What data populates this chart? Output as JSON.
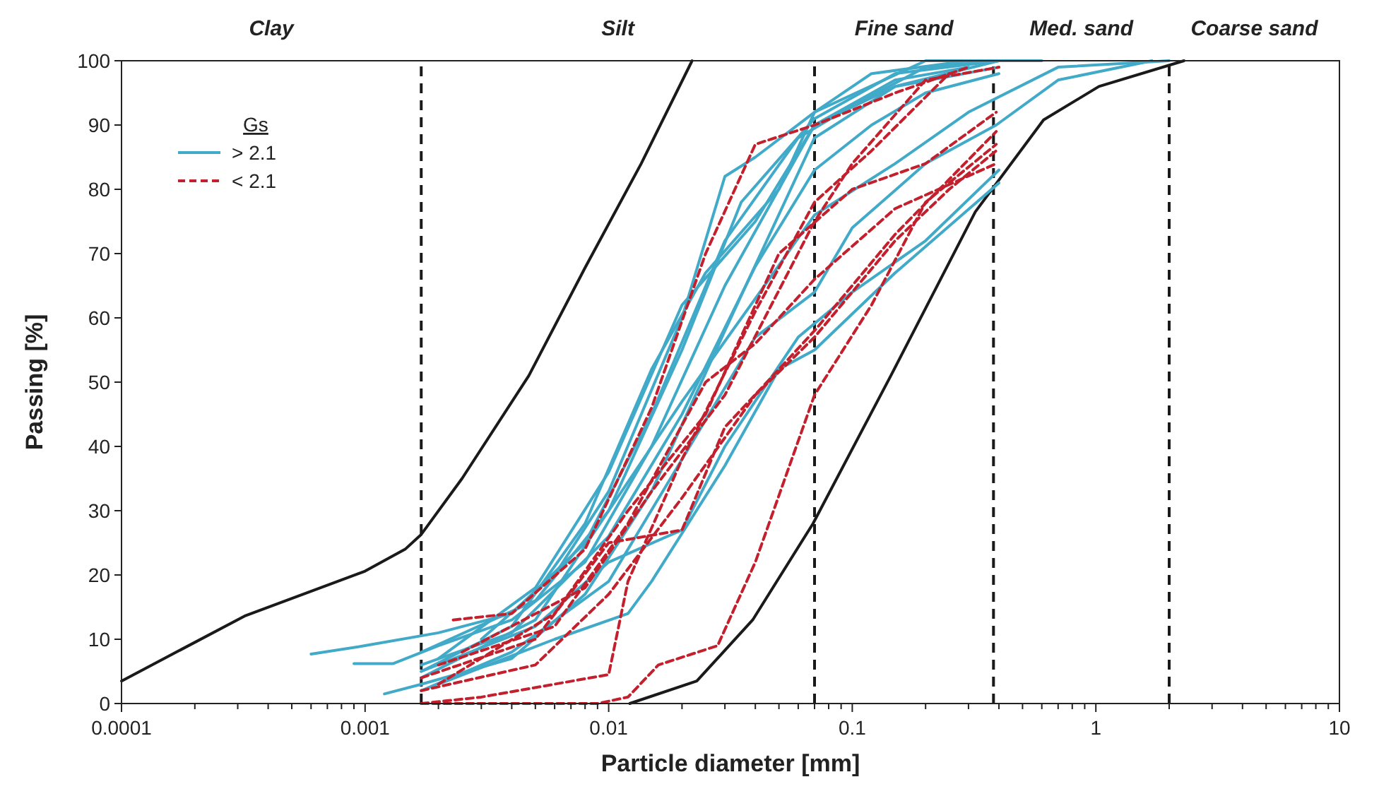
{
  "chart_data": {
    "type": "line",
    "xlabel": "Particle diameter [mm]",
    "ylabel": "Passing [%]",
    "log": "x",
    "xlim": [
      0.0001,
      10
    ],
    "ylim": [
      0,
      100
    ],
    "xticks": [
      0.0001,
      {
        "value": 0.0002,
        "label": null
      },
      {
        "value": 0.0003,
        "label": null
      },
      {
        "value": 0.0004,
        "label": null
      },
      {
        "value": 0.0005,
        "label": null
      },
      {
        "value": 0.0006,
        "label": null
      },
      {
        "value": 0.0007,
        "label": null
      },
      {
        "value": 0.0008,
        "label": null
      },
      {
        "value": 0.0009,
        "label": null
      },
      0.001,
      {
        "value": 0.002,
        "label": null
      },
      {
        "value": 0.003,
        "label": null
      },
      {
        "value": 0.004,
        "label": null
      },
      {
        "value": 0.005,
        "label": null
      },
      {
        "value": 0.006,
        "label": null
      },
      {
        "value": 0.007,
        "label": null
      },
      {
        "value": 0.008,
        "label": null
      },
      {
        "value": 0.009,
        "label": null
      },
      0.01,
      {
        "value": 0.02,
        "label": null
      },
      {
        "value": 0.03,
        "label": null
      },
      {
        "value": 0.04,
        "label": null
      },
      {
        "value": 0.05,
        "label": null
      },
      {
        "value": 0.06,
        "label": null
      },
      {
        "value": 0.07,
        "label": null
      },
      {
        "value": 0.08,
        "label": null
      },
      {
        "value": 0.09,
        "label": null
      },
      0.1,
      {
        "value": 0.2,
        "label": null
      },
      {
        "value": 0.3,
        "label": null
      },
      {
        "value": 0.4,
        "label": null
      },
      {
        "value": 0.5,
        "label": null
      },
      {
        "value": 0.6,
        "label": null
      },
      {
        "value": 0.7,
        "label": null
      },
      {
        "value": 0.8,
        "label": null
      },
      {
        "value": 0.9,
        "label": null
      },
      1,
      {
        "value": 2,
        "label": null
      },
      {
        "value": 3,
        "label": null
      },
      {
        "value": 4,
        "label": null
      },
      {
        "value": 5,
        "label": null
      },
      {
        "value": 6,
        "label": null
      },
      {
        "value": 7,
        "label": null
      },
      {
        "value": 8,
        "label": null
      },
      {
        "value": 9,
        "label": null
      },
      10
    ],
    "yticks": [
      0,
      10,
      20,
      30,
      40,
      50,
      60,
      70,
      80,
      90,
      100
    ],
    "grid": false,
    "marker": "none",
    "legend": "top left",
    "legend_title": "Gs",
    "ref_lines": [
      {
        "axis": "x",
        "value": 0.0017,
        "color": "#1a1a1a",
        "line_style": "dashed"
      },
      {
        "axis": "x",
        "value": 0.07,
        "color": "#1a1a1a",
        "line_style": "dashed"
      },
      {
        "axis": "x",
        "value": 0.38,
        "color": "#1a1a1a",
        "line_style": "dashed"
      },
      {
        "axis": "x",
        "value": 2,
        "color": "#1a1a1a",
        "line_style": "dashed"
      }
    ],
    "annotations": [
      "Clay",
      "Silt",
      "Fine sand",
      "Med. sand",
      "Coarse sand"
    ],
    "series": [
      {
        "color": "#1a1a1a",
        "line_style": "solid",
        "x": [
          0.0001,
          0.00032,
          0.001,
          0.00146,
          0.0017,
          0.0025,
          0.0047,
          0.008,
          0.0136,
          0.022
        ],
        "values": [
          3.5,
          13.6,
          20.6,
          24,
          26.3,
          35,
          51,
          67.8,
          84,
          100
        ]
      },
      {
        "color": "#1a1a1a",
        "line_style": "solid",
        "x": [
          0.0122,
          0.023,
          0.039,
          0.069,
          0.144,
          0.32,
          0.61,
          1.03,
          2.3
        ],
        "values": [
          0,
          3.5,
          13,
          28,
          51,
          76.5,
          90.8,
          96,
          100
        ]
      },
      {
        "name": "> 2.1",
        "color": "#41aac8",
        "line_style": "solid",
        "x": [
          0.0006,
          0.001,
          0.002,
          0.004,
          0.008,
          0.015,
          0.03,
          0.06,
          0.1,
          0.2,
          0.4
        ],
        "values": [
          7.7,
          9,
          11,
          14,
          25,
          45,
          72,
          88,
          93,
          99,
          100
        ]
      },
      {
        "color": "#41aac8",
        "line_style": "solid",
        "x": [
          0.0009,
          0.0013,
          0.002,
          0.004,
          0.008,
          0.015,
          0.03,
          0.07,
          0.15,
          0.3
        ],
        "values": [
          6.2,
          6.2,
          9,
          13,
          22,
          40,
          65,
          90,
          97,
          99
        ]
      },
      {
        "color": "#41aac8",
        "line_style": "solid",
        "x": [
          0.0012,
          0.0017,
          0.004,
          0.008,
          0.015,
          0.03,
          0.07,
          0.15,
          0.4
        ],
        "values": [
          1.5,
          3,
          7,
          17,
          33,
          58,
          88,
          96,
          100
        ]
      },
      {
        "color": "#41aac8",
        "line_style": "solid",
        "x": [
          0.0017,
          0.004,
          0.008,
          0.015,
          0.025,
          0.05,
          0.07,
          0.2,
          0.6
        ],
        "values": [
          5,
          12,
          28,
          52,
          67,
          80,
          92,
          100,
          100
        ]
      },
      {
        "color": "#41aac8",
        "line_style": "solid",
        "x": [
          0.0017,
          0.005,
          0.01,
          0.02,
          0.035,
          0.07,
          0.15,
          0.4
        ],
        "values": [
          4,
          13,
          30,
          55,
          78,
          91,
          98,
          100
        ]
      },
      {
        "color": "#41aac8",
        "line_style": "solid",
        "x": [
          0.0017,
          0.004,
          0.01,
          0.02,
          0.04,
          0.07,
          0.12,
          0.2,
          0.4
        ],
        "values": [
          6,
          11,
          26,
          45,
          68,
          83,
          90,
          95,
          98
        ]
      },
      {
        "color": "#41aac8",
        "line_style": "solid",
        "x": [
          0.0017,
          0.005,
          0.01,
          0.02,
          0.04,
          0.07,
          0.15,
          0.3,
          0.7,
          2
        ],
        "values": [
          8,
          16,
          30,
          47,
          63,
          76,
          84,
          92,
          99,
          100
        ]
      },
      {
        "color": "#41aac8",
        "line_style": "solid",
        "x": [
          0.0017,
          0.004,
          0.01,
          0.02,
          0.04,
          0.07,
          0.1,
          0.2,
          0.39,
          0.7,
          1.7
        ],
        "values": [
          2,
          8,
          19,
          38,
          57,
          64,
          74,
          84,
          90,
          97,
          100
        ]
      },
      {
        "color": "#41aac8",
        "line_style": "solid",
        "x": [
          0.002,
          0.006,
          0.012,
          0.015,
          0.03,
          0.05,
          0.07,
          0.15,
          0.4
        ],
        "values": [
          3,
          10,
          14,
          19,
          37,
          52,
          55,
          67,
          81
        ]
      },
      {
        "color": "#41aac8",
        "line_style": "solid",
        "x": [
          0.0017,
          0.005,
          0.01,
          0.02,
          0.03,
          0.06,
          0.1,
          0.2,
          0.4
        ],
        "values": [
          5,
          12,
          22,
          27,
          40,
          57,
          64,
          72,
          83
        ]
      },
      {
        "color": "#41aac8",
        "line_style": "solid",
        "x": [
          0.003,
          0.006,
          0.01,
          0.02,
          0.03,
          0.04,
          0.07,
          0.12,
          0.3
        ],
        "values": [
          10,
          20,
          33,
          60,
          82,
          85,
          92,
          98,
          100
        ]
      },
      {
        "color": "#41aac8",
        "line_style": "solid",
        "x": [
          0.002,
          0.005,
          0.01,
          0.02,
          0.04,
          0.07,
          0.15,
          0.4
        ],
        "values": [
          7,
          18,
          36,
          62,
          75,
          90,
          96,
          99
        ]
      },
      {
        "name": "< 2.1",
        "color": "#c3202e",
        "line_style": "dashed",
        "x": [
          0.0023,
          0.004,
          0.008,
          0.015,
          0.025,
          0.04,
          0.07,
          0.15,
          0.3
        ],
        "values": [
          13,
          14,
          24,
          46,
          70,
          87,
          90,
          95,
          99
        ]
      },
      {
        "color": "#c3202e",
        "line_style": "dashed",
        "x": [
          0.0017,
          0.003,
          0.01,
          0.012,
          0.02,
          0.04,
          0.07,
          0.12,
          0.25
        ],
        "values": [
          0,
          1,
          4.5,
          19,
          38,
          61,
          78,
          86,
          98
        ]
      },
      {
        "color": "#c3202e",
        "line_style": "dashed",
        "x": [
          0.0017,
          0.004,
          0.009,
          0.012,
          0.016,
          0.028,
          0.04,
          0.07,
          0.12,
          0.2,
          0.39
        ],
        "values": [
          0,
          0,
          0,
          1,
          6,
          9,
          22,
          48,
          62,
          78,
          87
        ]
      },
      {
        "color": "#c3202e",
        "line_style": "dashed",
        "x": [
          0.0017,
          0.005,
          0.01,
          0.02,
          0.04,
          0.07,
          0.15,
          0.25,
          0.39
        ],
        "values": [
          2,
          6,
          17,
          32,
          48,
          57,
          72,
          80,
          86
        ]
      },
      {
        "color": "#c3202e",
        "line_style": "dashed",
        "x": [
          0.0017,
          0.005,
          0.01,
          0.02,
          0.03,
          0.05,
          0.07,
          0.15,
          0.39
        ],
        "values": [
          4,
          10,
          25,
          27,
          43,
          52,
          58,
          73,
          89
        ]
      },
      {
        "color": "#c3202e",
        "line_style": "dashed",
        "x": [
          0.002,
          0.006,
          0.012,
          0.025,
          0.04,
          0.07,
          0.15,
          0.39
        ],
        "values": [
          6,
          12,
          28,
          50,
          56,
          66,
          77,
          84
        ]
      },
      {
        "color": "#c3202e",
        "line_style": "dashed",
        "x": [
          0.0025,
          0.008,
          0.015,
          0.03,
          0.07,
          0.1,
          0.2,
          0.4
        ],
        "values": [
          8,
          18,
          33,
          48,
          75,
          84,
          97,
          99
        ]
      },
      {
        "color": "#c3202e",
        "line_style": "dashed",
        "x": [
          0.002,
          0.006,
          0.012,
          0.025,
          0.05,
          0.1,
          0.2,
          0.39
        ],
        "values": [
          3,
          14,
          30,
          45,
          70,
          80,
          84,
          92
        ]
      }
    ]
  }
}
